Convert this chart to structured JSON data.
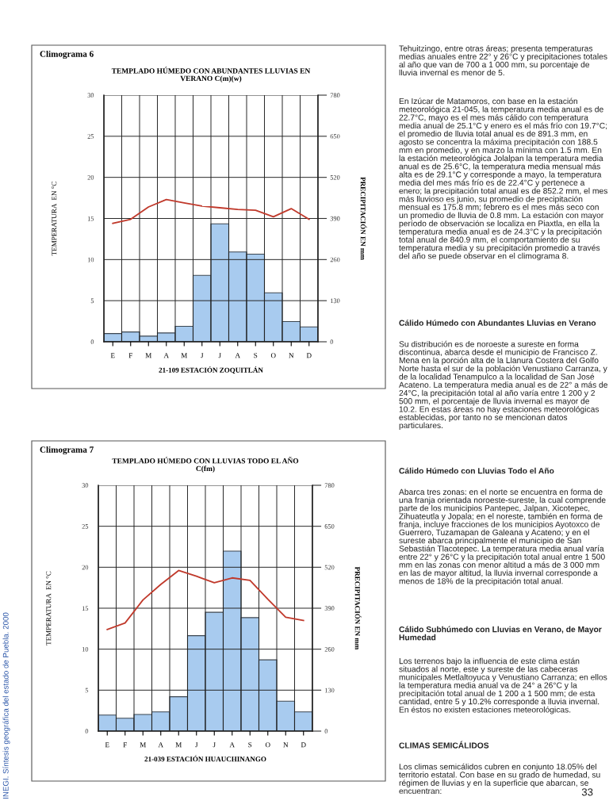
{
  "chart_data": [
    {
      "type": "bar",
      "title": "Climograma 6",
      "subtitle": "TEMPLADO HÚMEDO CON ABUNDANTES LLUVIAS EN\nVERANO C(m)(w)",
      "xlabel": "21-109 ESTACIÓN ZOQUITLÁN",
      "ylabel": "TEMPERATURA  EN °C",
      "y2label": "PRECIPITACIÓN EN mm",
      "categories": [
        "E",
        "F",
        "M",
        "A",
        "M",
        "J",
        "J",
        "A",
        "S",
        "O",
        "N",
        "D"
      ],
      "series": [
        {
          "type": "bar",
          "axis": "y2",
          "color": "#a8cbef",
          "values": [
            26,
            31,
            18,
            28,
            49,
            210,
            373,
            284,
            277,
            155,
            64,
            47
          ]
        },
        {
          "type": "line",
          "color": "#c0392b",
          "values": [
            14.4,
            14.9,
            16.4,
            17.3,
            16.9,
            16.5,
            16.3,
            16.1,
            16.0,
            15.2,
            16.2,
            14.9
          ]
        }
      ],
      "ylim": [
        0,
        30
      ],
      "yticks": [
        0,
        5,
        10,
        15,
        20,
        25,
        30
      ],
      "y2lim": [
        0,
        780
      ],
      "y2ticks": [
        0,
        130,
        260,
        390,
        520,
        650,
        780
      ],
      "grid": true
    },
    {
      "type": "bar",
      "title": "Climograma 7",
      "subtitle": "TEMPLADO HÚMEDO CON LLUVIAS TODO EL AÑO\nC(fm)",
      "xlabel": "21-039 ESTACIÓN HUAUCHINANGO",
      "ylabel": "TEMPERATURA  EN °C",
      "y2label": "PRECIPITACIÓN EN mm",
      "categories": [
        "E",
        "F",
        "M",
        "A",
        "M",
        "J",
        "J",
        "A",
        "S",
        "O",
        "N",
        "D"
      ],
      "series": [
        {
          "type": "bar",
          "axis": "y2",
          "color": "#a8cbef",
          "values": [
            51,
            41,
            53,
            61,
            109,
            303,
            377,
            571,
            360,
            226,
            95,
            61
          ]
        },
        {
          "type": "line",
          "color": "#c0392b",
          "values": [
            12.4,
            13.2,
            16.0,
            17.9,
            19.6,
            18.9,
            18.1,
            18.7,
            18.4,
            16.1,
            13.9,
            13.5
          ]
        }
      ],
      "ylim": [
        0,
        30
      ],
      "yticks": [
        0,
        5,
        10,
        15,
        20,
        25,
        30
      ],
      "y2lim": [
        0,
        780
      ],
      "y2ticks": [
        0,
        130,
        260,
        390,
        520,
        650,
        780
      ],
      "grid": true
    },
    {
      "type": "other",
      "annotations": [
        "Tehuitzingo, entre otras áreas; presenta temperaturas medias anuales entre 22° y 26°C y precipitaciones totales al año que van de 700 a 1 000 mm, su porcentaje de lluvia invernal es menor de 5.",
        "En Izúcar de Matamoros, con base en la estación meteorológica 21-045, la temperatura media anual es de 22.7°C, mayo es el mes más cálido con temperatura media anual de 25.1°C y enero es el más frío con 19.7°C; el promedio de lluvia total anual es de 891.3 mm, en agosto se concentra la máxima precipitación con 188.5 mm en promedio, y en marzo la mínima con 1.5 mm. En la estación meteorológica Jolalpan la temperatura media anual es de 25.6°C, la temperatura media mensual más alta es de 29.1°C y corresponde a mayo, la temperatura media del mes más frío es de 22.4°C y pertenece a enero; la precipitación total anual es de 852.2 mm, el mes más lluvioso es junio, su promedio de precipitación mensual es 175.8 mm; febrero es el mes más seco con un promedio de lluvia de 0.8 mm. La estación con mayor período de observación se localiza en Piaxtla, en ella la temperatura media anual es de 24.3°C y la precipitación total anual de 840.9 mm, el comportamiento de su temperatura media y su precipitación promedio a través del año se puede observar en el climograma 8.",
        "Cálido Húmedo con Abundantes Lluvias en Verano",
        "Su distribución es de noroeste a sureste en forma discontinua, abarca desde el municipio de Francisco Z. Mena en la porción alta de la Llanura Costera del Golfo Norte hasta el sur de la población Venustiano Carranza, y de la localidad Tenampulco a la localidad de San José Acateno. La temperatura media anual es de 22° a más de 24°C, la precipitación total al año varía entre 1 200 y 2 500 mm, el porcentaje de lluvia invernal es mayor de 10.2. En estas áreas no hay estaciones meteorológicas establecidas, por tanto no se mencionan datos particulares.",
        "Cálido Húmedo con Lluvias Todo el Año",
        "Abarca tres zonas: en el norte se encuentra en forma de una franja orientada noroeste-sureste, la cual comprende parte de los municipios Pantepec, Jalpan, Xicotepec, Zihuateutla y Jopala; en el noreste, también en forma de franja, incluye fracciones de los municipios Ayotoxco de Guerrero, Tuzamapan de Galeana y Acateno; y en el sureste abarca principalmente el municipio de San Sebastián Tlacotepec. La temperatura media anual varía entre 22° y 26°C y la precipitación total anual entre 1 500 mm en las zonas con menor altitud a más de 3 000 mm en las de mayor altitud, la lluvia invernal corresponde a menos de 18% de la precipitación total anual.",
        "Cálido Subhúmedo con Lluvias en Verano, de Mayor Humedad",
        "Los terrenos bajo la influencia de este clima están situados al norte, este y sureste de las cabeceras municipales Metlaltoyuca y Venustiano Carranza; en ellos la temperatura media anual va de 24° a 26°C y la precipitación total anual de 1 200 a 1 500 mm; de esta cantidad, entre 5 y 10.2% corresponde a lluvia invernal. En éstos no existen estaciones meteorológicas.",
        "CLIMAS SEMICÁLIDOS",
        "Los climas semicálidos cubren en conjunto 18.05% del territorio estatal. Con base en su grado de humedad, su régimen de lluvias y en la superficie que abarcan, se encuentran:",
        "INEGI. Síntesis geográfica del estado de Puebla. 2000",
        "33"
      ]
    }
  ]
}
